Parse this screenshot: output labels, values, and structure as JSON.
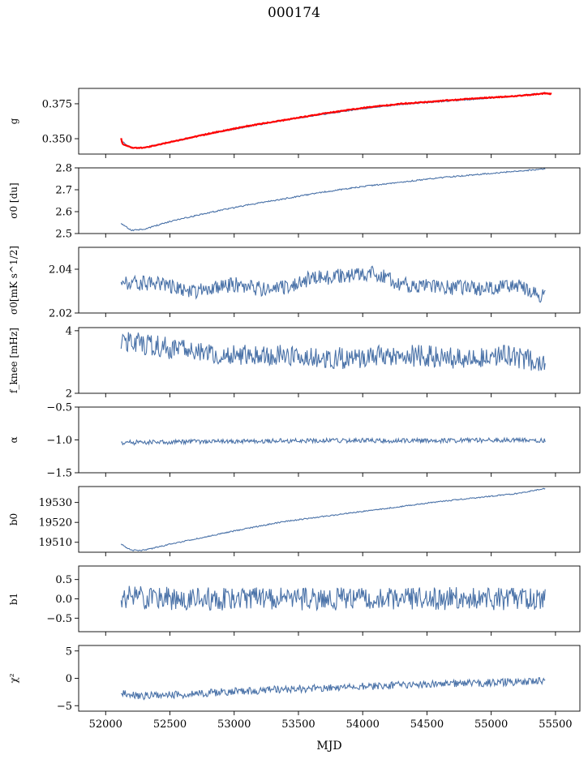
{
  "figure": {
    "title": "000174",
    "xlabel": "MJD"
  },
  "chart_data": [
    {
      "type": "line",
      "ylabel": "g",
      "xlim": [
        51790,
        55690
      ],
      "ylim": [
        0.339,
        0.386
      ],
      "yticks": [
        0.35,
        0.375
      ],
      "ytick_labels": [
        "0.350",
        "0.375"
      ],
      "series": [
        {
          "color": "#4a72a8",
          "x": [
            52120,
            52200,
            52300,
            52500,
            52800,
            53100,
            53400,
            53700,
            54000,
            54300,
            54600,
            54900,
            55200,
            55420
          ],
          "values": [
            0.3485,
            0.3435,
            0.3435,
            0.3475,
            0.3535,
            0.3585,
            0.3635,
            0.3675,
            0.3715,
            0.3745,
            0.3765,
            0.3785,
            0.3805,
            0.383
          ]
        },
        {
          "color": "#ff0000",
          "x": [
            52120,
            52130,
            52200,
            52300,
            52500,
            52800,
            53100,
            53400,
            53700,
            54000,
            54300,
            54600,
            54900,
            55200,
            55420,
            55470
          ],
          "values": [
            0.3505,
            0.3465,
            0.3435,
            0.3435,
            0.3475,
            0.3535,
            0.359,
            0.3635,
            0.368,
            0.372,
            0.375,
            0.377,
            0.379,
            0.3805,
            0.3825,
            0.382
          ]
        }
      ]
    },
    {
      "type": "line",
      "ylabel": "σ0 [du]",
      "xlim": [
        51790,
        55690
      ],
      "ylim": [
        2.5,
        2.8
      ],
      "yticks": [
        2.5,
        2.6,
        2.7,
        2.8
      ],
      "ytick_labels": [
        "2.5",
        "2.6",
        "2.7",
        "2.8"
      ],
      "series": [
        {
          "color": "#4a72a8",
          "x": [
            52120,
            52200,
            52300,
            52500,
            52800,
            53100,
            53400,
            53700,
            54000,
            54300,
            54600,
            54900,
            55200,
            55420
          ],
          "values": [
            2.545,
            2.515,
            2.52,
            2.555,
            2.595,
            2.63,
            2.66,
            2.69,
            2.715,
            2.735,
            2.755,
            2.77,
            2.785,
            2.795
          ]
        }
      ]
    },
    {
      "type": "line",
      "ylabel": "σ0[mK s^1/2]",
      "xlim": [
        51790,
        55690
      ],
      "ylim": [
        2.02,
        2.05
      ],
      "yticks": [
        2.02,
        2.04
      ],
      "ytick_labels": [
        "2.02",
        "2.04"
      ],
      "series": [
        {
          "color": "#4a72a8",
          "x": [
            52120,
            52400,
            52700,
            53000,
            53300,
            53600,
            53900,
            54100,
            54300,
            54600,
            54900,
            55200,
            55420
          ],
          "values": [
            2.033,
            2.034,
            2.03,
            2.033,
            2.03,
            2.036,
            2.037,
            2.038,
            2.033,
            2.032,
            2.031,
            2.033,
            2.027
          ]
        }
      ]
    },
    {
      "type": "line",
      "ylabel": "f_knee [mHz]",
      "xlim": [
        51790,
        55690
      ],
      "ylim": [
        2,
        4.1
      ],
      "yticks": [
        2,
        4
      ],
      "ytick_labels": [
        "2",
        "4"
      ],
      "series": [
        {
          "color": "#4a72a8",
          "x": [
            52120,
            52400,
            52700,
            53000,
            53300,
            53600,
            53900,
            54200,
            54500,
            54800,
            55100,
            55420
          ],
          "values": [
            3.7,
            3.5,
            3.3,
            3.2,
            3.2,
            3.2,
            3.1,
            3.2,
            3.2,
            3.1,
            3.2,
            3.0
          ]
        }
      ]
    },
    {
      "type": "line",
      "ylabel": "α",
      "xlim": [
        51790,
        55690
      ],
      "ylim": [
        -1.5,
        -0.5
      ],
      "yticks": [
        -1.5,
        -1.0,
        -0.5
      ],
      "ytick_labels": [
        "−1.5",
        "−1.0",
        "−0.5"
      ],
      "series": [
        {
          "color": "#4a72a8",
          "x": [
            52120,
            52600,
            53100,
            53600,
            54100,
            54600,
            55100,
            55420
          ],
          "values": [
            -1.04,
            -1.03,
            -1.02,
            -1.01,
            -1.01,
            -1.01,
            -1.0,
            -1.01
          ]
        }
      ]
    },
    {
      "type": "line",
      "ylabel": "b0",
      "xlim": [
        51790,
        55690
      ],
      "ylim": [
        19505,
        19538
      ],
      "yticks": [
        19510,
        19520,
        19530
      ],
      "ytick_labels": [
        "19510",
        "19520",
        "19530"
      ],
      "series": [
        {
          "color": "#4a72a8",
          "x": [
            52120,
            52200,
            52300,
            52500,
            52800,
            53100,
            53400,
            53700,
            54000,
            54300,
            54600,
            54900,
            55200,
            55420
          ],
          "values": [
            19509,
            19506,
            19506,
            19509,
            19513,
            19517,
            19520.5,
            19523,
            19525.5,
            19528,
            19530.5,
            19532.5,
            19534.5,
            19537
          ]
        }
      ]
    },
    {
      "type": "line",
      "ylabel": "b1",
      "xlim": [
        51790,
        55690
      ],
      "ylim": [
        -0.85,
        0.85
      ],
      "yticks": [
        -0.5,
        0.0,
        0.5
      ],
      "ytick_labels": [
        "−0.5",
        "0.0",
        "0.5"
      ],
      "series": [
        {
          "color": "#4a72a8",
          "x": [
            52120,
            52600,
            53100,
            53600,
            54100,
            54600,
            55100,
            55420
          ],
          "values": [
            0.05,
            0.0,
            0.0,
            0.0,
            0.0,
            0.0,
            0.0,
            0.0
          ]
        }
      ]
    },
    {
      "type": "line",
      "ylabel": "χ²",
      "xlim": [
        51790,
        55690
      ],
      "ylim": [
        -6,
        6
      ],
      "yticks": [
        -5,
        0,
        5
      ],
      "ytick_labels": [
        "−5",
        "0",
        "5"
      ],
      "series": [
        {
          "color": "#4a72a8",
          "x": [
            52120,
            52300,
            52600,
            52900,
            53200,
            53500,
            53800,
            54100,
            54400,
            54700,
            55000,
            55300,
            55420
          ],
          "values": [
            -2.8,
            -3.2,
            -3.0,
            -2.5,
            -2.2,
            -1.9,
            -1.7,
            -1.4,
            -1.2,
            -1.0,
            -0.8,
            -0.5,
            -0.5
          ]
        }
      ]
    }
  ],
  "xticks": [
    52000,
    52500,
    53000,
    53500,
    54000,
    54500,
    55000,
    55500
  ],
  "xtick_labels": [
    "52000",
    "52500",
    "53000",
    "53500",
    "54000",
    "54500",
    "55000",
    "55500"
  ]
}
